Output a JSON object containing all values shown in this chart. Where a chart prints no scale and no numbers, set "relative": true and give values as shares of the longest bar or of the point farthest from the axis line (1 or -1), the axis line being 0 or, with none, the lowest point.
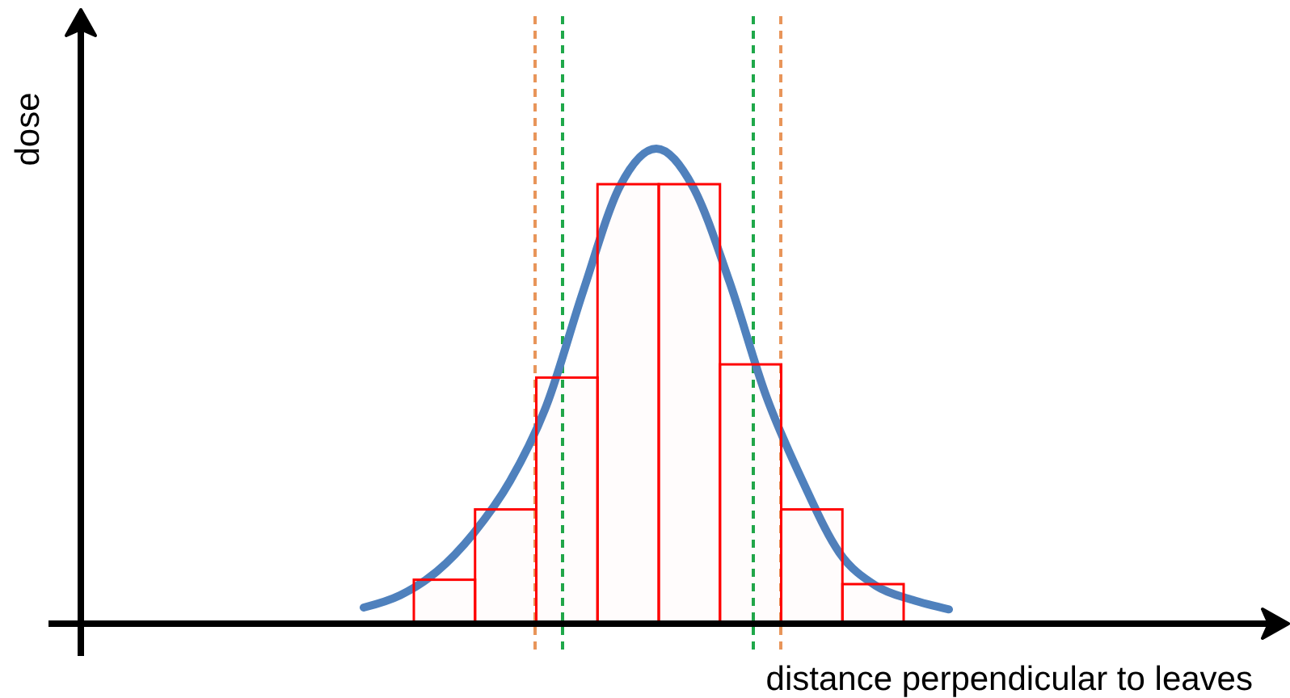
{
  "chart_data": [
    {
      "type": "bar",
      "relative": true,
      "categories": [
        null,
        null,
        null,
        null,
        null,
        null,
        null,
        null
      ],
      "values": [
        0.1,
        0.26,
        0.56,
        1,
        1,
        0.59,
        0.26,
        0.09
      ],
      "color": "#ff0000",
      "xlabel": "distance perpendicular to leaves",
      "ylabel": "dose"
    },
    {
      "type": "line",
      "relative": true,
      "categories": [
        null,
        null,
        null,
        null,
        null,
        null,
        null,
        null,
        null,
        null,
        null,
        null,
        null,
        null,
        null,
        null,
        null
      ],
      "series": [
        {
          "color": "#4f81bd",
          "values": [
            0.034,
            0.06,
            0.11,
            0.19,
            0.3,
            0.46,
            0.7,
            0.92,
            1,
            0.92,
            0.72,
            0.48,
            0.3,
            0.15,
            0.08,
            0.05,
            0.03
          ]
        }
      ]
    }
  ]
}
